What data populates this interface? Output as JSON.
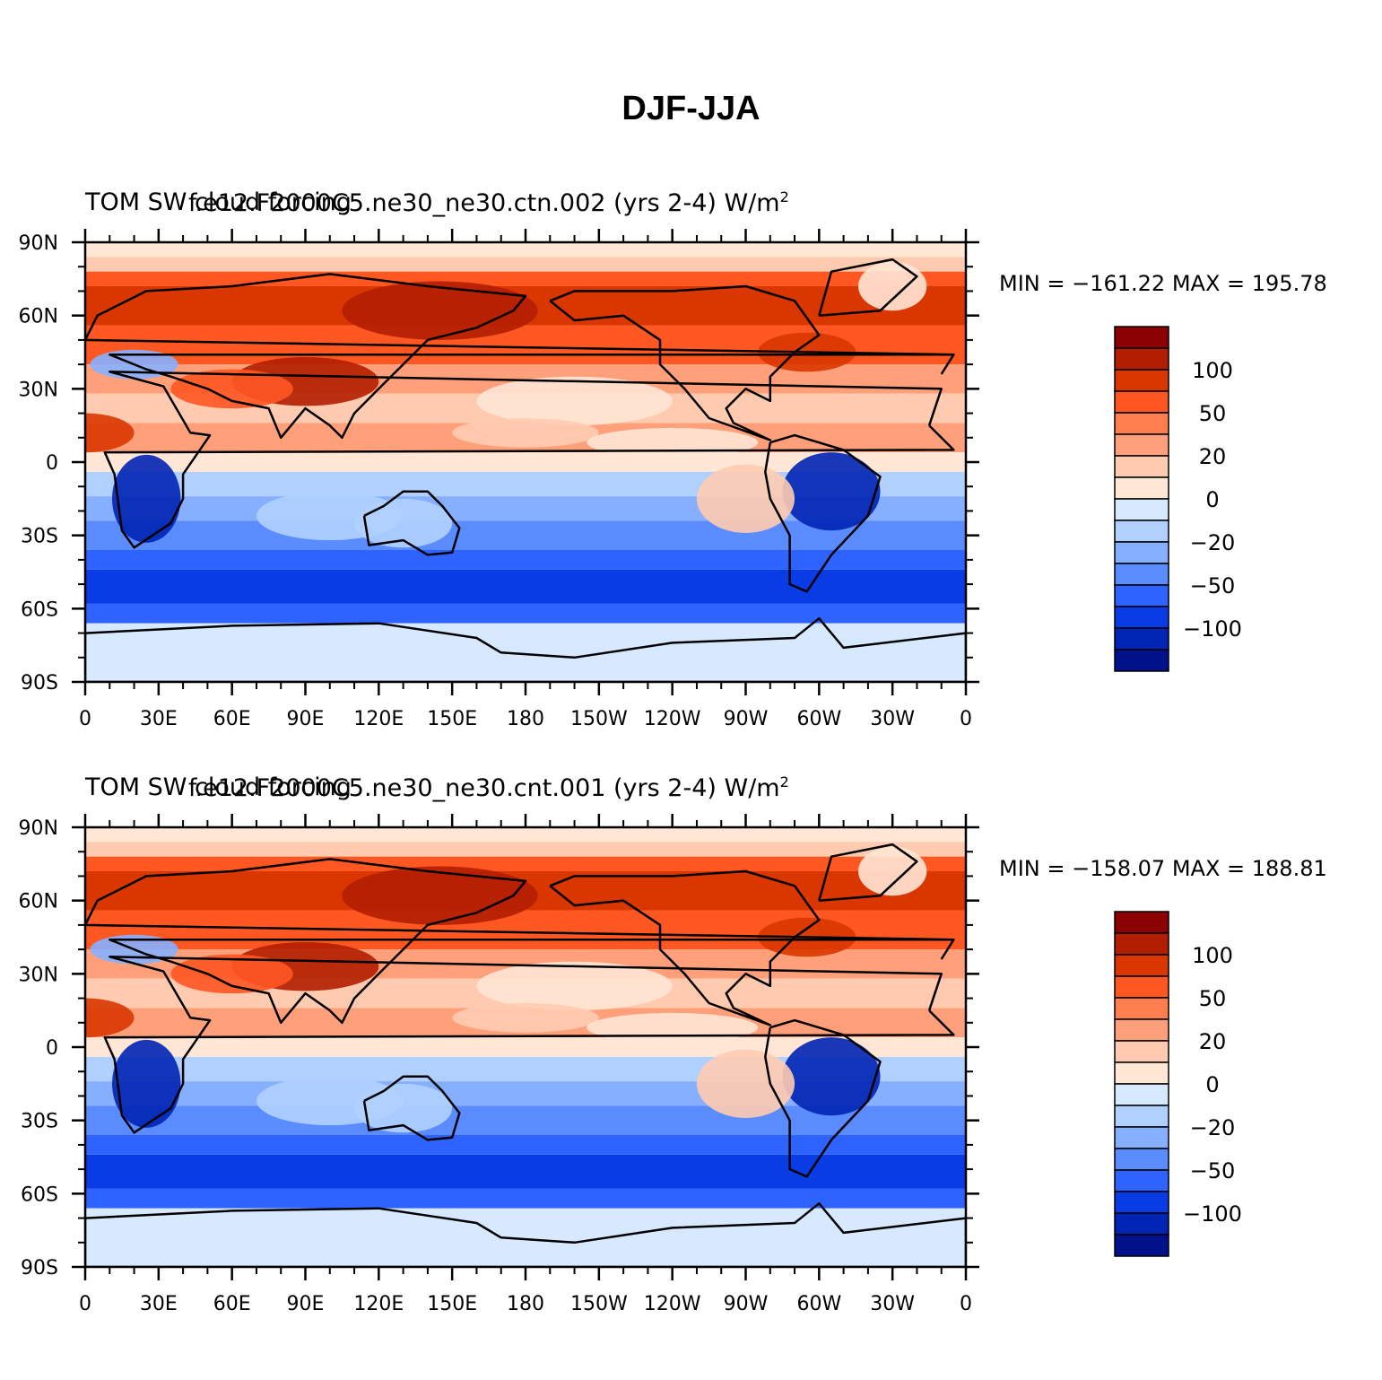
{
  "title": "DJF-JJA",
  "panels": [
    {
      "left_title": "TOM SW cloud forcing",
      "center_title": "f.e12.F2000C5.ne30_ne30.ctn.002 (yrs 2-4) W/m",
      "units_sup": "2",
      "min_max": "MIN = −161.22  MAX = 195.78"
    },
    {
      "left_title": "TOM SW cloud forcing",
      "center_title": "f.e12.F2000C5.ne30_ne30.cnt.001 (yrs 2-4) W/m",
      "units_sup": "2",
      "min_max": "MIN = −158.07  MAX = 188.81"
    }
  ],
  "lat_labels": [
    "90N",
    "60N",
    "30N",
    "0",
    "30S",
    "60S",
    "90S"
  ],
  "lon_labels": [
    "0",
    "30E",
    "60E",
    "90E",
    "120E",
    "150E",
    "180",
    "150W",
    "120W",
    "90W",
    "60W",
    "30W",
    "0"
  ],
  "colorbar": {
    "colors": [
      "#8b0000",
      "#b21e00",
      "#d93600",
      "#ff5722",
      "#ff7f50",
      "#ffa07a",
      "#ffcbb0",
      "#ffe6d5",
      "#d6e9ff",
      "#b0d0ff",
      "#86b0ff",
      "#5a8cff",
      "#2f63ff",
      "#0a3ce6",
      "#0024b4",
      "#00118a"
    ],
    "labels": [
      {
        "text": "100",
        "boundary": 2
      },
      {
        "text": "50",
        "boundary": 4
      },
      {
        "text": "20",
        "boundary": 6
      },
      {
        "text": "0",
        "boundary": 8
      },
      {
        "text": "−20",
        "boundary": 10
      },
      {
        "text": "−50",
        "boundary": 12
      },
      {
        "text": "−100",
        "boundary": 14
      }
    ]
  },
  "colors": {
    "ocean_base": "#d6e9ff",
    "coast": "#000000"
  }
}
